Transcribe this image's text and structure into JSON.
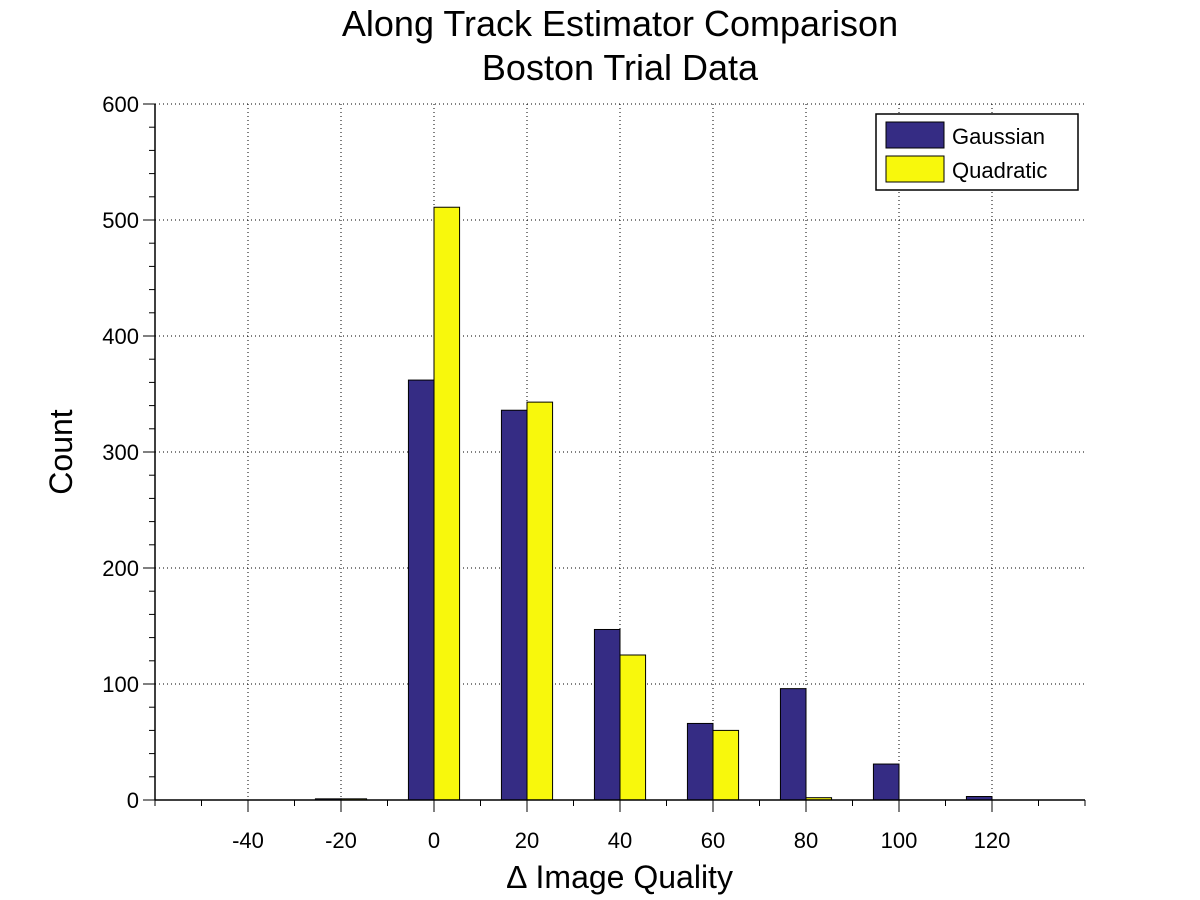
{
  "chart_data": {
    "type": "bar",
    "title": "Along Track Estimator Comparison",
    "subtitle": "Boston Trial Data",
    "xlabel": "∆ Image Quality",
    "ylabel": "Count",
    "x": [
      -40,
      -20,
      0,
      20,
      40,
      60,
      80,
      100,
      120
    ],
    "series": [
      {
        "name": "Gaussian",
        "color": "#352c84",
        "values": [
          0,
          1,
          362,
          336,
          147,
          66,
          96,
          31,
          3
        ]
      },
      {
        "name": "Quadratic",
        "color": "#f8f80c",
        "values": [
          0,
          1,
          511,
          343,
          125,
          60,
          2,
          0,
          0
        ]
      }
    ],
    "xlim": [
      -60,
      140
    ],
    "ylim": [
      0,
      600
    ],
    "x_ticks": [
      -40,
      -20,
      0,
      20,
      40,
      60,
      80,
      100,
      120
    ],
    "x_tick_labels": [
      "-40",
      "-20",
      "0",
      "20",
      "40",
      "60",
      "80",
      "100",
      "120"
    ],
    "y_ticks": [
      0,
      100,
      200,
      300,
      400,
      500,
      600
    ],
    "y_tick_labels": [
      "0",
      "100",
      "200",
      "300",
      "400",
      "500",
      "600"
    ],
    "grid": true,
    "legend_position": "top-right"
  }
}
